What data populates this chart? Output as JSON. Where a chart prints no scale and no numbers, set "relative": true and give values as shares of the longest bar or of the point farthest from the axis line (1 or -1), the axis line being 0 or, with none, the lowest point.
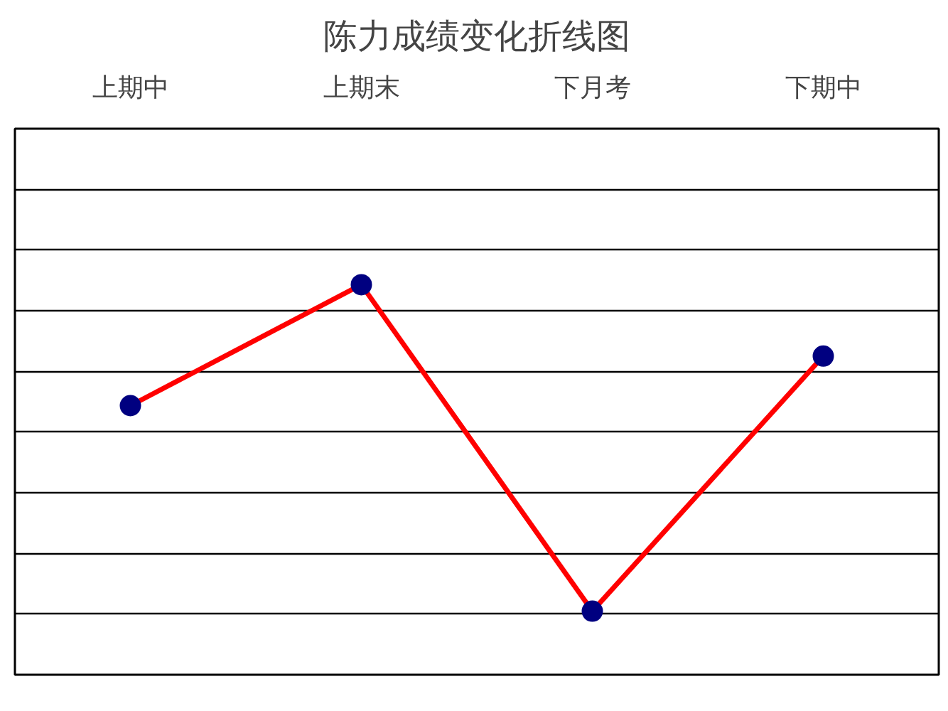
{
  "chart_data": {
    "type": "line",
    "title": "陈力成绩变化折线图",
    "categories": [
      "上期中",
      "上期末",
      "下月考",
      "下期中"
    ],
    "relative": true,
    "series": [
      {
        "color": "#ff0000",
        "colors": [
          "#000080",
          "#000080",
          "#000080",
          "#000080"
        ],
        "values": [
          0.69,
          1,
          0.163,
          0.817
        ]
      }
    ],
    "grid": "y",
    "marker": "circle",
    "line_style": "solid"
  }
}
